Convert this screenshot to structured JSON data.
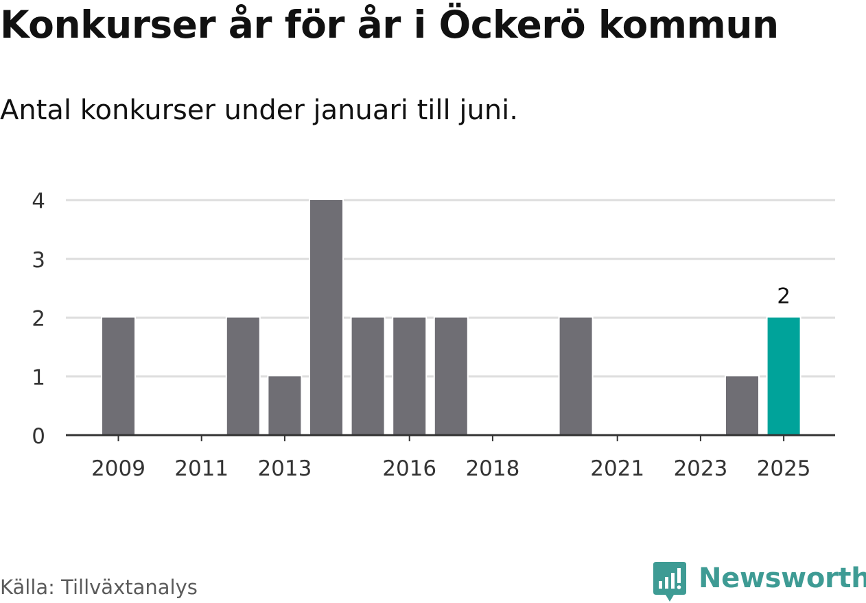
{
  "header": {
    "title": "Konkurser år för år i Öckerö kommun",
    "subtitle": "Antal konkurser under januari till juni."
  },
  "footer": {
    "source": "Källa: Tillväxtanalys",
    "brand": "Newsworthy"
  },
  "colors": {
    "bar": "#6f6e74",
    "highlight": "#00a39a",
    "grid": "#dddddd",
    "axis": "#333333",
    "brand": "#3e9b94"
  },
  "icons": {
    "brand": "newsworthy-logo-icon"
  },
  "chart_data": {
    "type": "bar",
    "categories": [
      "2009",
      "2010",
      "2011",
      "2012",
      "2013",
      "2014",
      "2015",
      "2016",
      "2017",
      "2018",
      "2019",
      "2020",
      "2021",
      "2022",
      "2023",
      "2024",
      "2025"
    ],
    "values": [
      2,
      0,
      0,
      2,
      1,
      4,
      2,
      2,
      2,
      0,
      0,
      2,
      0,
      0,
      0,
      1,
      2
    ],
    "x_tick_labels": [
      "2009",
      "2011",
      "2013",
      "2016",
      "2018",
      "2021",
      "2023",
      "2025"
    ],
    "y_ticks": [
      0,
      1,
      2,
      3,
      4
    ],
    "ylim": [
      0,
      4
    ],
    "grid": true,
    "highlight_category": "2025",
    "annotations": [
      {
        "category": "2025",
        "text": "2"
      }
    ],
    "title": "Konkurser år för år i Öckerö kommun",
    "subtitle": "Antal konkurser under januari till juni.",
    "xlabel": "",
    "ylabel": ""
  }
}
